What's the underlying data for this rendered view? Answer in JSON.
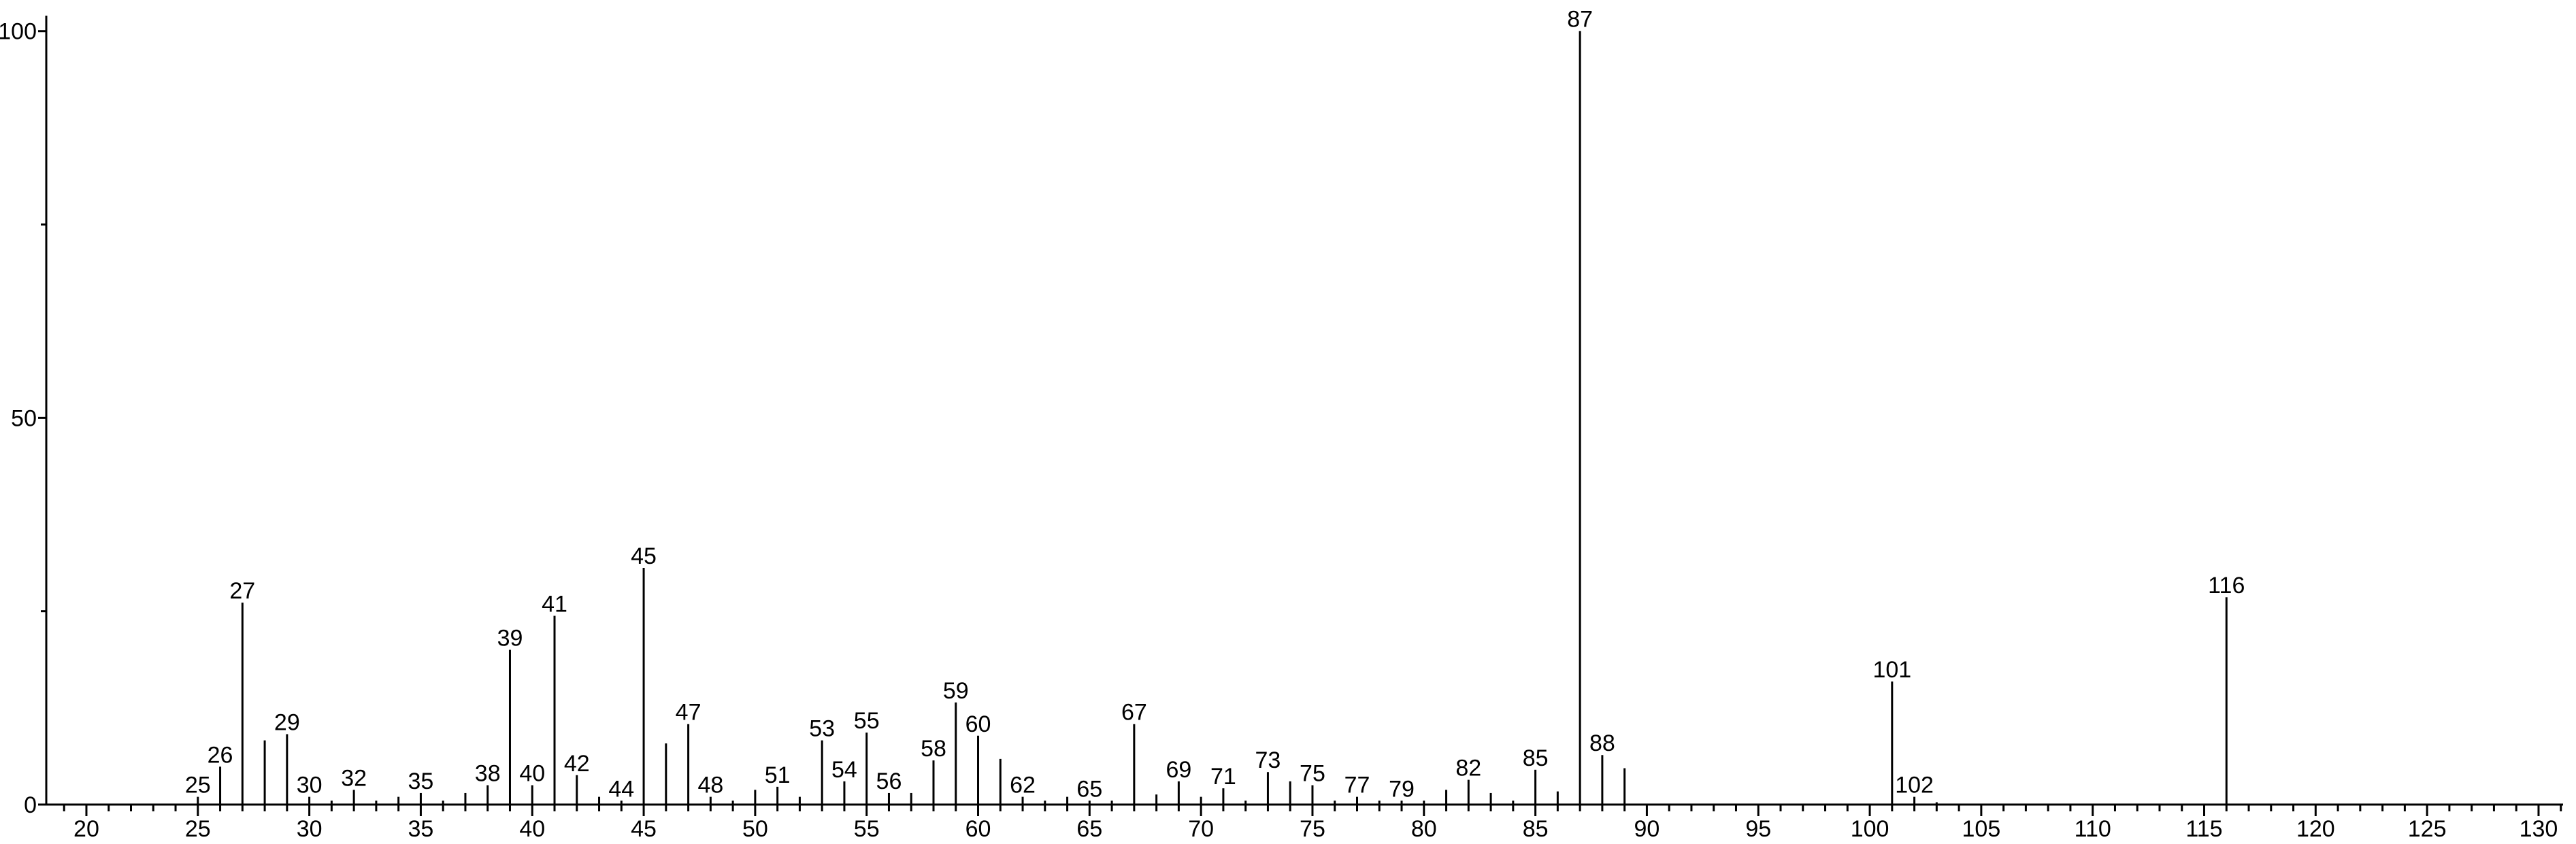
{
  "chart_data": {
    "type": "stem",
    "color": "#000000",
    "x": [
      25,
      26,
      27,
      28,
      29,
      30,
      31,
      32,
      33,
      34,
      35,
      36,
      37,
      38,
      39,
      40,
      41,
      42,
      43,
      44,
      45,
      46,
      47,
      48,
      49,
      50,
      51,
      52,
      53,
      54,
      55,
      56,
      57,
      58,
      59,
      60,
      61,
      62,
      63,
      64,
      65,
      66,
      67,
      68,
      69,
      70,
      71,
      72,
      73,
      74,
      75,
      76,
      77,
      78,
      79,
      80,
      81,
      82,
      83,
      84,
      85,
      86,
      87,
      88,
      89,
      101,
      102,
      103,
      116
    ],
    "values": [
      1,
      4.9,
      26.1,
      8.3,
      9.1,
      1,
      0.5,
      1.9,
      0.5,
      1,
      1.5,
      0.5,
      1.5,
      2.5,
      20,
      2.5,
      24.4,
      3.8,
      1,
      0.5,
      30.6,
      7.9,
      10.4,
      1,
      0.5,
      1.9,
      2.3,
      1,
      8.3,
      3,
      9.3,
      1.5,
      1.5,
      5.7,
      13.2,
      8.9,
      5.9,
      1,
      0.5,
      1,
      0.5,
      0.5,
      10.4,
      1.3,
      3,
      1,
      2.1,
      0.5,
      4.2,
      3,
      2.5,
      0.5,
      1,
      0.5,
      0.5,
      0.5,
      1.9,
      3.2,
      1.5,
      0.5,
      4.5,
      1.7,
      100,
      6.4,
      4.7,
      15.9,
      1,
      0.3,
      26.8
    ],
    "point_labels": [
      25,
      26,
      27,
      null,
      29,
      30,
      null,
      32,
      null,
      null,
      35,
      null,
      null,
      38,
      39,
      40,
      41,
      42,
      null,
      44,
      45,
      null,
      47,
      48,
      null,
      null,
      51,
      null,
      53,
      54,
      55,
      56,
      null,
      58,
      59,
      60,
      null,
      62,
      null,
      null,
      65,
      null,
      67,
      null,
      69,
      null,
      71,
      null,
      73,
      null,
      75,
      null,
      77,
      null,
      79,
      null,
      null,
      82,
      null,
      null,
      85,
      null,
      87,
      88,
      null,
      101,
      102,
      null,
      116
    ],
    "xlim": [
      18.2,
      131.1
    ],
    "ylim": [
      0,
      102
    ],
    "xticks": [
      20,
      25,
      30,
      35,
      40,
      45,
      50,
      55,
      60,
      65,
      70,
      75,
      80,
      85,
      90,
      95,
      100,
      105,
      110,
      115,
      120,
      125,
      130
    ],
    "xminorticks": [
      19,
      21,
      22,
      23,
      24,
      26,
      27,
      28,
      29,
      31,
      32,
      33,
      34,
      36,
      37,
      38,
      39,
      41,
      42,
      43,
      44,
      46,
      47,
      48,
      49,
      51,
      52,
      53,
      54,
      56,
      57,
      58,
      59,
      61,
      62,
      63,
      64,
      66,
      67,
      68,
      69,
      71,
      72,
      73,
      74,
      76,
      77,
      78,
      79,
      81,
      82,
      83,
      84,
      86,
      87,
      88,
      89,
      91,
      92,
      93,
      94,
      96,
      97,
      98,
      99,
      101,
      102,
      103,
      104,
      106,
      107,
      108,
      109,
      111,
      112,
      113,
      114,
      116,
      117,
      118,
      119,
      121,
      122,
      123,
      124,
      126,
      127,
      128,
      129,
      131
    ],
    "yticks": [
      0,
      50,
      100
    ],
    "yminorticks": [
      25,
      75
    ]
  }
}
